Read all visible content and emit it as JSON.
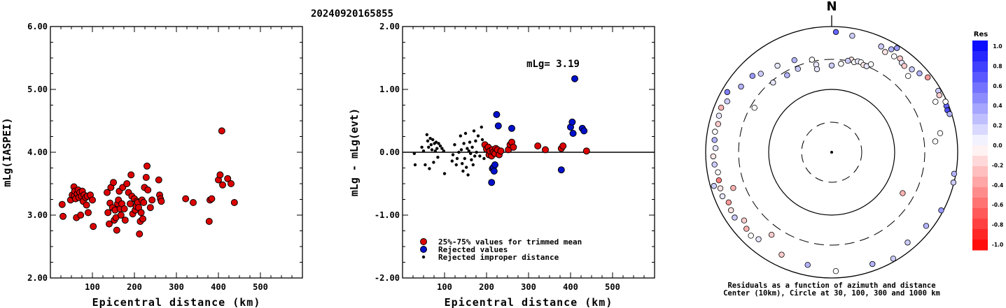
{
  "figure_title": "20240920165855",
  "chart_data": [
    {
      "type": "scatter",
      "title": "",
      "xlabel": "Epicentral distance (km)",
      "ylabel": "mLg(IASPEI)",
      "xlim": [
        0,
        600
      ],
      "ylim": [
        2.0,
        6.0
      ],
      "x_ticks": [
        "100",
        "200",
        "300",
        "400",
        "500"
      ],
      "y_ticks": [
        "2.00",
        "3.00",
        "4.00",
        "5.00",
        "6.00"
      ],
      "series": [
        {
          "color": "#dd0000",
          "points": [
            [
              28,
              3.17
            ],
            [
              30,
              2.98
            ],
            [
              48,
              3.24
            ],
            [
              52,
              3.32
            ],
            [
              56,
              3.45
            ],
            [
              57,
              3.31
            ],
            [
              58,
              3.38
            ],
            [
              60,
              3.26
            ],
            [
              62,
              2.96
            ],
            [
              64,
              3.34
            ],
            [
              66,
              3.4
            ],
            [
              68,
              3.28
            ],
            [
              70,
              3.36
            ],
            [
              72,
              3.0
            ],
            [
              74,
              3.3
            ],
            [
              76,
              3.38
            ],
            [
              78,
              3.22
            ],
            [
              80,
              3.32
            ],
            [
              84,
              3.28
            ],
            [
              86,
              3.16
            ],
            [
              88,
              3.3
            ],
            [
              90,
              3.04
            ],
            [
              95,
              3.32
            ],
            [
              100,
              3.24
            ],
            [
              102,
              2.82
            ],
            [
              135,
              3.36
            ],
            [
              137,
              3.04
            ],
            [
              140,
              2.86
            ],
            [
              142,
              3.19
            ],
            [
              144,
              3.44
            ],
            [
              148,
              3.12
            ],
            [
              150,
              3.52
            ],
            [
              152,
              2.92
            ],
            [
              154,
              3.08
            ],
            [
              156,
              2.96
            ],
            [
              158,
              2.76
            ],
            [
              160,
              3.18
            ],
            [
              162,
              3.24
            ],
            [
              164,
              3.38
            ],
            [
              166,
              3.1
            ],
            [
              168,
              3.0
            ],
            [
              170,
              3.18
            ],
            [
              172,
              3.44
            ],
            [
              176,
              3.1
            ],
            [
              178,
              2.92
            ],
            [
              182,
              3.5
            ],
            [
              186,
              3.36
            ],
            [
              190,
              3.18
            ],
            [
              192,
              3.64
            ],
            [
              194,
              3.3
            ],
            [
              196,
              3.02
            ],
            [
              200,
              3.26
            ],
            [
              202,
              3.08
            ],
            [
              204,
              3.14
            ],
            [
              206,
              3.22
            ],
            [
              208,
              3.2
            ],
            [
              210,
              3.12
            ],
            [
              212,
              2.7
            ],
            [
              214,
              2.9
            ],
            [
              216,
              3.04
            ],
            [
              218,
              3.24
            ],
            [
              220,
              2.94
            ],
            [
              222,
              3.2
            ],
            [
              224,
              3.44
            ],
            [
              228,
              3.6
            ],
            [
              230,
              3.78
            ],
            [
              232,
              3.4
            ],
            [
              238,
              3.12
            ],
            [
              242,
              3.24
            ],
            [
              258,
              3.56
            ],
            [
              260,
              3.32
            ],
            [
              262,
              3.26
            ],
            [
              264,
              3.22
            ],
            [
              322,
              3.26
            ],
            [
              340,
              3.2
            ],
            [
              378,
              2.9
            ],
            [
              380,
              3.24
            ],
            [
              384,
              3.26
            ],
            [
              400,
              3.56
            ],
            [
              404,
              3.64
            ],
            [
              408,
              4.34
            ],
            [
              410,
              3.48
            ],
            [
              422,
              3.58
            ],
            [
              430,
              3.5
            ],
            [
              438,
              3.2
            ]
          ]
        }
      ]
    },
    {
      "type": "scatter",
      "title": "",
      "xlabel": "Epicentral distance (km)",
      "ylabel": "mLg - mLg(evt)",
      "xlim": [
        0,
        600
      ],
      "ylim": [
        -2.0,
        2.0
      ],
      "x_ticks": [
        "100",
        "200",
        "300",
        "400",
        "500"
      ],
      "y_ticks": [
        "-2.00",
        "-1.00",
        "0.00",
        "1.00",
        "2.00"
      ],
      "annotation": "mLg= 3.19",
      "reference_line_y": 0.0,
      "legend": {
        "placement": "bottom-left",
        "entries": [
          {
            "label": "25%-75% values for trimmed mean",
            "color": "#dd0000",
            "marker": "large"
          },
          {
            "label": "Rejected values",
            "color": "#0010cc",
            "marker": "large"
          },
          {
            "label": "Rejected improper distance",
            "color": "#000000",
            "marker": "small"
          }
        ]
      },
      "series": [
        {
          "name": "25%-75% values for trimmed mean",
          "color": "#dd0000",
          "points": [
            [
              196,
              0.12
            ],
            [
              200,
              0.05
            ],
            [
              204,
              0.08
            ],
            [
              206,
              -0.04
            ],
            [
              208,
              0.02
            ],
            [
              212,
              -0.06
            ],
            [
              214,
              0.04
            ],
            [
              216,
              0.0
            ],
            [
              220,
              -0.02
            ],
            [
              222,
              0.06
            ],
            [
              226,
              0.04
            ],
            [
              230,
              -0.04
            ],
            [
              234,
              0.02
            ],
            [
              252,
              0.04
            ],
            [
              256,
              0.12
            ],
            [
              260,
              0.16
            ],
            [
              264,
              0.08
            ],
            [
              322,
              0.1
            ],
            [
              340,
              0.04
            ],
            [
              378,
              0.06
            ],
            [
              382,
              0.1
            ],
            [
              438,
              0.02
            ]
          ]
        },
        {
          "name": "Rejected values",
          "color": "#0010cc",
          "points": [
            [
              212,
              -0.48
            ],
            [
              214,
              -0.26
            ],
            [
              216,
              -0.24
            ],
            [
              218,
              -0.3
            ],
            [
              220,
              -0.2
            ],
            [
              224,
              0.6
            ],
            [
              228,
              0.42
            ],
            [
              260,
              0.38
            ],
            [
              378,
              -0.28
            ],
            [
              400,
              0.4
            ],
            [
              404,
              0.48
            ],
            [
              406,
              0.3
            ],
            [
              410,
              1.17
            ],
            [
              428,
              0.38
            ],
            [
              432,
              0.34
            ]
          ]
        },
        {
          "name": "Rejected improper distance",
          "color": "#000000",
          "points": [
            [
              28,
              -0.02
            ],
            [
              30,
              -0.2
            ],
            [
              46,
              0.08
            ],
            [
              50,
              0.02
            ],
            [
              54,
              -0.2
            ],
            [
              58,
              0.28
            ],
            [
              60,
              0.18
            ],
            [
              62,
              0.08
            ],
            [
              64,
              -0.26
            ],
            [
              66,
              0.22
            ],
            [
              68,
              0.12
            ],
            [
              70,
              0.04
            ],
            [
              72,
              0.2
            ],
            [
              74,
              -0.16
            ],
            [
              76,
              0.14
            ],
            [
              78,
              0.02
            ],
            [
              80,
              0.16
            ],
            [
              82,
              0.06
            ],
            [
              84,
              -0.08
            ],
            [
              86,
              0.14
            ],
            [
              90,
              0.1
            ],
            [
              94,
              0.06
            ],
            [
              98,
              0.02
            ],
            [
              100,
              -0.34
            ],
            [
              118,
              -0.14
            ],
            [
              120,
              -0.04
            ],
            [
              124,
              0.12
            ],
            [
              128,
              -0.2
            ],
            [
              130,
              -0.1
            ],
            [
              134,
              0.0
            ],
            [
              138,
              0.26
            ],
            [
              140,
              0.04
            ],
            [
              142,
              -0.18
            ],
            [
              144,
              -0.3
            ],
            [
              146,
              0.14
            ],
            [
              148,
              -0.1
            ],
            [
              150,
              0.3
            ],
            [
              152,
              -0.24
            ],
            [
              154,
              0.06
            ],
            [
              156,
              -0.36
            ],
            [
              158,
              0.02
            ],
            [
              160,
              0.16
            ],
            [
              162,
              -0.02
            ],
            [
              164,
              -0.12
            ],
            [
              166,
              0.08
            ],
            [
              168,
              -0.2
            ],
            [
              170,
              0.34
            ],
            [
              172,
              -0.06
            ],
            [
              174,
              0.18
            ],
            [
              176,
              0.0
            ],
            [
              180,
              0.26
            ],
            [
              184,
              -0.06
            ],
            [
              188,
              0.4
            ],
            [
              190,
              0.2
            ],
            [
              194,
              -0.1
            ]
          ]
        }
      ]
    },
    {
      "type": "scatter",
      "subtype": "polar",
      "north_label": "N",
      "caption_line1": "Residuals as a function of azimuth and distance",
      "caption_line2": "Center (10km), Circle at 30, 100, 300 and 1000 km",
      "colorbar": {
        "title": "Res",
        "ticks": [
          "1.0",
          "0.8",
          "0.6",
          "0.4",
          "0.2",
          "0.0",
          "-0.2",
          "-0.4",
          "-0.6",
          "-0.8",
          "-1.0"
        ],
        "range": [
          -1.0,
          1.0
        ]
      },
      "points_azimuth_deg_distance_km_residual": [
        [
          32,
          900,
          0.4
        ],
        [
          30,
          780,
          0.3
        ],
        [
          25,
          720,
          0.2
        ],
        [
          28,
          640,
          -0.1
        ],
        [
          33,
          660,
          0.0
        ],
        [
          36,
          700,
          -0.2
        ],
        [
          38,
          640,
          0.1
        ],
        [
          40,
          620,
          -0.2
        ],
        [
          44,
          680,
          0.2
        ],
        [
          45,
          520,
          0.0
        ],
        [
          12,
          320,
          -0.1
        ],
        [
          14,
          300,
          0.0
        ],
        [
          16,
          320,
          0.1
        ],
        [
          18,
          320,
          0.0
        ],
        [
          20,
          300,
          -0.1
        ],
        [
          22,
          300,
          0.1
        ],
        [
          24,
          340,
          0.0
        ],
        [
          10,
          300,
          0.2
        ],
        [
          6,
          260,
          0.0
        ],
        [
          0,
          240,
          0.2
        ],
        [
          -10,
          260,
          0.1
        ],
        [
          -22,
          270,
          0.2
        ],
        [
          -30,
          260,
          0.3
        ],
        [
          -40,
          280,
          0.1
        ],
        [
          48,
          750,
          0.3
        ],
        [
          52,
          860,
          -0.4
        ],
        [
          60,
          900,
          0.2
        ],
        [
          62,
          860,
          -0.2
        ],
        [
          64,
          680,
          0.0
        ],
        [
          68,
          920,
          0.6
        ],
        [
          70,
          900,
          0.7
        ],
        [
          72,
          930,
          0.3
        ],
        [
          66,
          950,
          0.0
        ],
        [
          80,
          560,
          0.0
        ],
        [
          84,
          450,
          0.0
        ],
        [
          100,
          940,
          0.3
        ],
        [
          104,
          980,
          0.2
        ],
        [
          118,
          930,
          0.4
        ],
        [
          128,
          800,
          0.3
        ],
        [
          140,
          750,
          0.2
        ],
        [
          150,
          900,
          0.2
        ],
        [
          160,
          780,
          0.3
        ],
        [
          178,
          780,
          0.0
        ],
        [
          192,
          680,
          0.3
        ],
        [
          206,
          650,
          -0.2
        ],
        [
          220,
          640,
          0.1
        ],
        [
          232,
          580,
          -0.2
        ],
        [
          224,
          700,
          0.0
        ],
        [
          228,
          660,
          -0.3
        ],
        [
          236,
          720,
          0.2
        ],
        [
          240,
          700,
          -0.1
        ],
        [
          244,
          660,
          -0.4
        ],
        [
          248,
          740,
          0.1
        ],
        [
          252,
          720,
          -0.1
        ],
        [
          256,
          700,
          -0.5
        ],
        [
          260,
          680,
          0.0
        ],
        [
          264,
          740,
          0.2
        ],
        [
          268,
          760,
          -0.1
        ],
        [
          272,
          700,
          0.1
        ],
        [
          276,
          740,
          0.3
        ],
        [
          280,
          760,
          0.0
        ],
        [
          284,
          720,
          -0.2
        ],
        [
          288,
          760,
          0.1
        ],
        [
          292,
          780,
          -0.3
        ],
        [
          296,
          700,
          0.2
        ],
        [
          300,
          820,
          0.5
        ],
        [
          306,
          600,
          0.3
        ],
        [
          314,
          560,
          0.4
        ],
        [
          318,
          480,
          0.2
        ],
        [
          328,
          420,
          0.1
        ],
        [
          338,
          380,
          0.3
        ],
        [
          254,
          880,
          0.2
        ],
        [
          250,
          460,
          -0.3
        ],
        [
          216,
          420,
          -0.2
        ],
        [
          348,
          320,
          0.0
        ],
        [
          10,
          760,
          0.2
        ],
        [
          2,
          820,
          0.6
        ],
        [
          120,
          200,
          -0.3
        ],
        [
          300,
          260,
          0.0
        ],
        [
          350,
          220,
          0.1
        ]
      ]
    }
  ]
}
